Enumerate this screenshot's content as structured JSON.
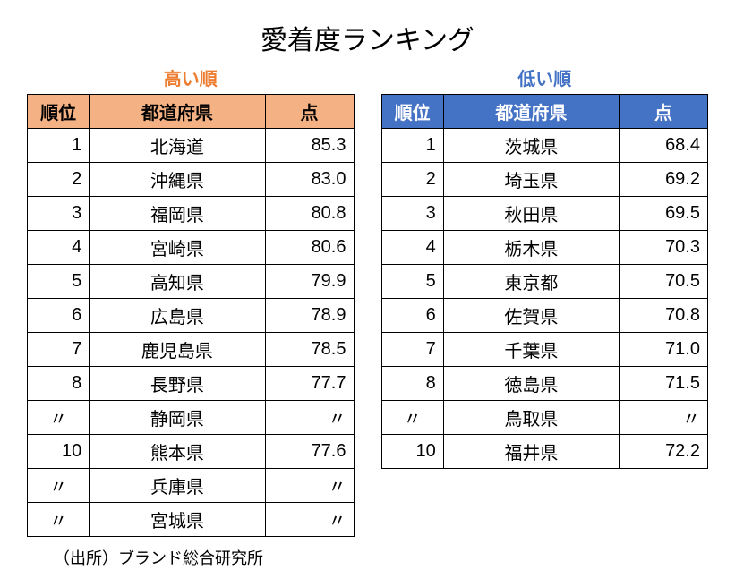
{
  "title": "愛着度ランキング",
  "source": "（出所）ブランド総合研究所",
  "columns": {
    "rank": "順位",
    "pref": "都道府県",
    "score": "点"
  },
  "high": {
    "subtitle": "高い順",
    "rows": [
      {
        "rank": "1",
        "pref": "北海道",
        "score": "85.3"
      },
      {
        "rank": "2",
        "pref": "沖縄県",
        "score": "83.0"
      },
      {
        "rank": "3",
        "pref": "福岡県",
        "score": "80.8"
      },
      {
        "rank": "4",
        "pref": "宮崎県",
        "score": "80.6"
      },
      {
        "rank": "5",
        "pref": "高知県",
        "score": "79.9"
      },
      {
        "rank": "6",
        "pref": "広島県",
        "score": "78.9"
      },
      {
        "rank": "7",
        "pref": "鹿児島県",
        "score": "78.5"
      },
      {
        "rank": "8",
        "pref": "長野県",
        "score": "77.7"
      },
      {
        "rank": "〃",
        "pref": "静岡県",
        "score": "〃"
      },
      {
        "rank": "10",
        "pref": "熊本県",
        "score": "77.6"
      },
      {
        "rank": "〃",
        "pref": "兵庫県",
        "score": "〃"
      },
      {
        "rank": "〃",
        "pref": "宮城県",
        "score": "〃"
      }
    ]
  },
  "low": {
    "subtitle": "低い順",
    "rows": [
      {
        "rank": "1",
        "pref": "茨城県",
        "score": "68.4"
      },
      {
        "rank": "2",
        "pref": "埼玉県",
        "score": "69.2"
      },
      {
        "rank": "3",
        "pref": "秋田県",
        "score": "69.5"
      },
      {
        "rank": "4",
        "pref": "栃木県",
        "score": "70.3"
      },
      {
        "rank": "5",
        "pref": "東京都",
        "score": "70.5"
      },
      {
        "rank": "6",
        "pref": "佐賀県",
        "score": "70.8"
      },
      {
        "rank": "7",
        "pref": "千葉県",
        "score": "71.0"
      },
      {
        "rank": "8",
        "pref": "徳島県",
        "score": "71.5"
      },
      {
        "rank": "〃",
        "pref": "鳥取県",
        "score": "〃"
      },
      {
        "rank": "10",
        "pref": "福井県",
        "score": "72.2"
      }
    ]
  }
}
